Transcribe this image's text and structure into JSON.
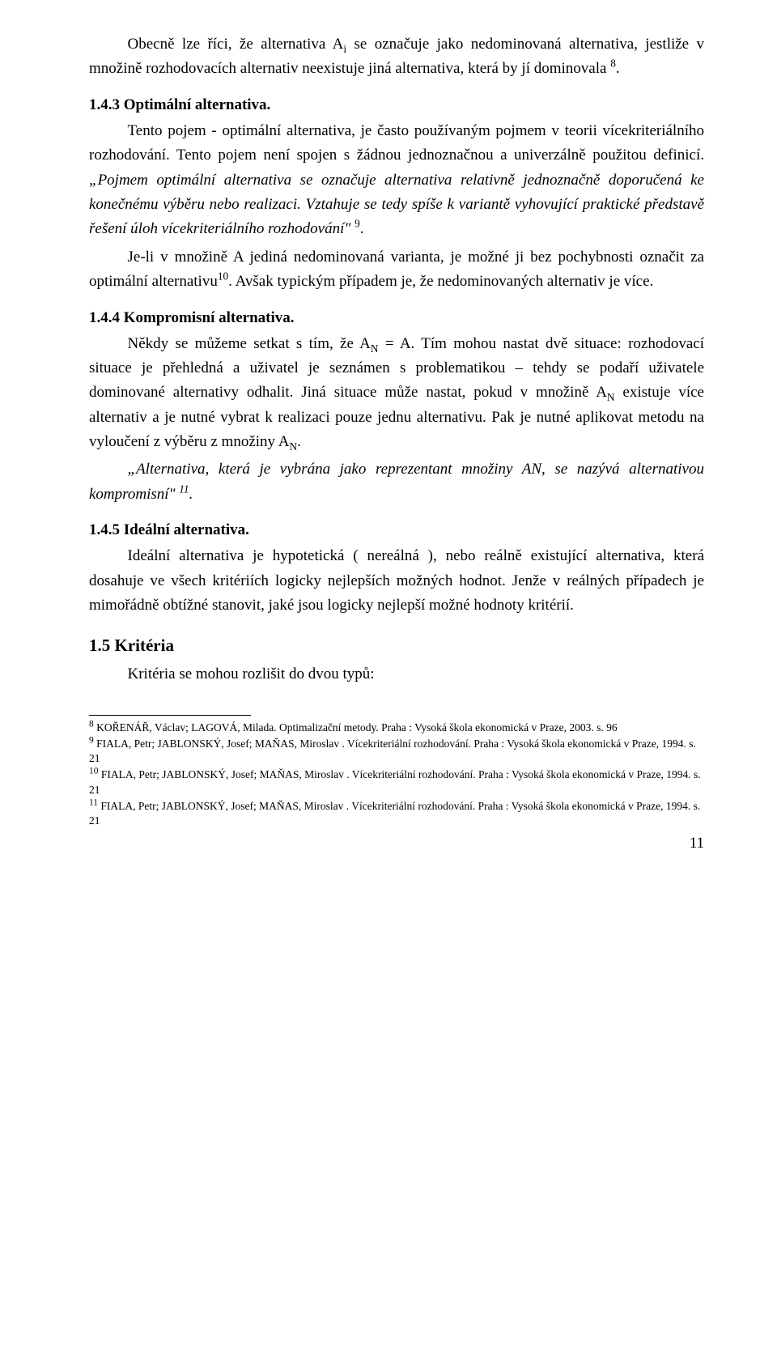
{
  "intro_paragraph": {
    "pre": "Obecně lze říci, že alternativa A",
    "sub1": "i",
    "mid": " se označuje jako nedominovaná alternativa, jestliže v množině rozhodovacích alternativ neexistuje jiná alternativa, která by jí dominovala ",
    "sup1": "8",
    "post": "."
  },
  "s143": {
    "heading": "1.4.3  Optimální alternativa.",
    "p1": "Tento pojem - optimální alternativa,  je často používaným pojmem v teorii vícekriteriálního rozhodování. Tento pojem není spojen s žádnou jednoznačnou a univerzálně použitou definicí. ",
    "quote1": "„Pojmem optimální alternativa se označuje alternativa relativně jednoznačně doporučená ke konečnému výběru nebo realizaci. Vztahuje se tedy spíše k variantě vyhovující praktické představě řešení úloh vícekriteriálního rozhodování\" ",
    "sup1": "9",
    "q1_post": ".",
    "p2_pre": "Je-li v množině A jediná nedominovaná varianta, je možné ji bez pochybnosti označit za optimální alternativu",
    "p2_sup": "10",
    "p2_post": ". Avšak typickým případem je, že nedominovaných alternativ je více."
  },
  "s144": {
    "heading": "1.4.4  Kompromisní alternativa.",
    "p1_pre": "Někdy se můžeme setkat s tím, že A",
    "p1_sub1": "N",
    "p1_mid1": "  = A. Tím mohou nastat dvě situace: rozhodovací situace je přehledná a uživatel je seznámen s problematikou – tehdy se podaří uživatele dominované alternativy odhalit. Jiná situace může nastat, pokud v množině A",
    "p1_sub2": "N",
    "p1_mid2": " existuje více alternativ a je nutné vybrat k realizaci pouze jednu alternativu. Pak je nutné aplikovat metodu na vyloučení z výběru z množiny A",
    "p1_sub3": "N",
    "p1_post": ".",
    "quote_pre": "„Alternativa, která je vybrána jako reprezentant množiny AN, se nazývá alternativou kompromisní\" ",
    "quote_sup": "11",
    "quote_post": "."
  },
  "s145": {
    "heading": "1.4.5  Ideální alternativa.",
    "p1": "Ideální alternativa je hypotetická ( nereálná ), nebo reálně existující alternativa, která dosahuje ve všech kritériích logicky nejlepších možných hodnot. Jenže v reálných případech je mimořádně obtížné stanovit, jaké jsou logicky nejlepší možné hodnoty kritérií."
  },
  "s15": {
    "heading": "1.5  Kritéria",
    "p1": "Kritéria se mohou rozlišit do dvou typů:"
  },
  "footnotes": {
    "f8": {
      "num": "8",
      "text": " KOŘENÁŘ, Václav; LAGOVÁ, Milada. Optimalizační metody. Praha : Vysoká škola ekonomická v Praze, 2003. s. 96"
    },
    "f9": {
      "num": "9",
      "text": " FIALA, Petr; JABLONSKÝ, Josef; MAŇAS, Miroslav . Vícekriteriální rozhodování. Praha : Vysoká škola ekonomická v Praze, 1994. s. 21"
    },
    "f10": {
      "num": "10",
      "text": " FIALA, Petr; JABLONSKÝ, Josef; MAŇAS, Miroslav . Vícekriteriální rozhodování. Praha : Vysoká škola ekonomická v Praze, 1994. s. 21"
    },
    "f11": {
      "num": "11",
      "text": " FIALA, Petr; JABLONSKÝ, Josef; MAŇAS, Miroslav . Vícekriteriální rozhodování. Praha : Vysoká škola ekonomická v Praze, 1994. s. 21"
    }
  },
  "page_number": "11"
}
